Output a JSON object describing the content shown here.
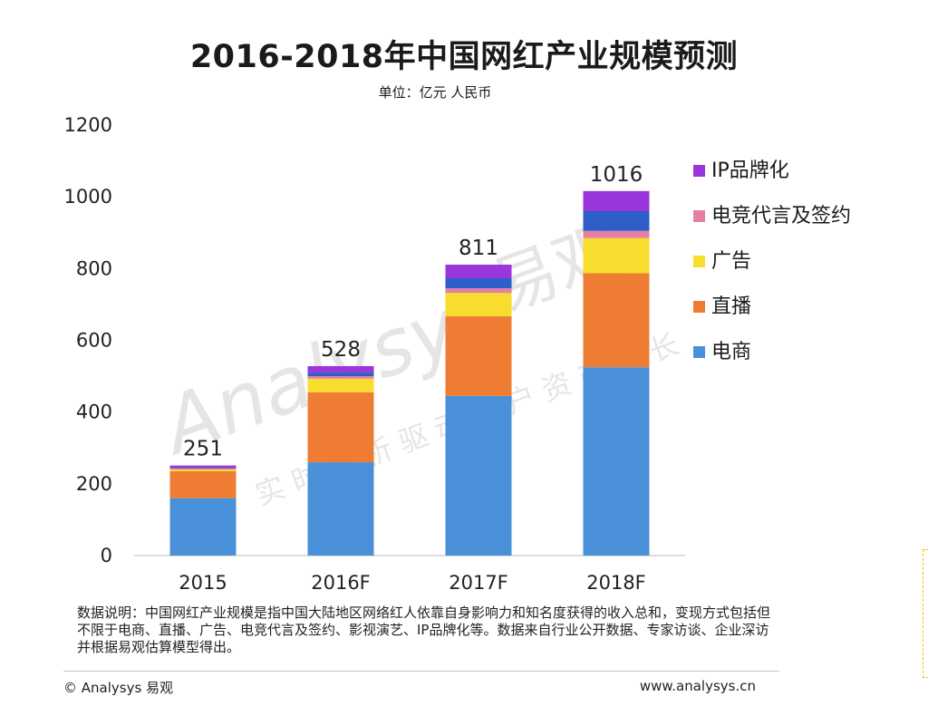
{
  "header": {
    "title": "2016-2018年中国网红产业规模预测",
    "subtitle": "单位：亿元 人民币"
  },
  "colors": {
    "ecommerce": "#4a90d9",
    "livestream": "#ee7d33",
    "advertising": "#f8dc2e",
    "esports": "#e77fa4",
    "blue_segment": "#2e5fc9",
    "ip_brand": "#9b36dc"
  },
  "chart_data": {
    "type": "bar",
    "stacked": true,
    "categories": [
      "2015",
      "2016F",
      "2017F",
      "2018F"
    ],
    "totals": [
      "251",
      "528",
      "811",
      "1016"
    ],
    "series": [
      {
        "key": "ecommerce",
        "name": "电商",
        "values": [
          160,
          260,
          445,
          525
        ]
      },
      {
        "key": "livestream",
        "name": "直播",
        "values": [
          75,
          195,
          222,
          262
        ]
      },
      {
        "key": "advertising",
        "name": "广告",
        "values": [
          5,
          38,
          65,
          98
        ]
      },
      {
        "key": "esports",
        "name": "电竞代言及签约",
        "values": [
          3,
          7,
          13,
          20
        ]
      },
      {
        "key": "blue_segment",
        "name": "",
        "values": [
          2,
          10,
          28,
          55
        ]
      },
      {
        "key": "ip_brand",
        "name": "IP品牌化",
        "values": [
          6,
          18,
          38,
          56
        ]
      }
    ],
    "legend": [
      "IP品牌化",
      "电竞代言及签约",
      "广告",
      "直播",
      "电商"
    ],
    "legend_keys": [
      "ip_brand",
      "esports",
      "advertising",
      "livestream",
      "ecommerce"
    ],
    "ylim": [
      0,
      1200
    ],
    "yticks": [
      0,
      200,
      400,
      600,
      800,
      1000,
      1200
    ],
    "grid": false,
    "legend_position": "right"
  },
  "watermark": {
    "logo": "Analysys",
    "brand": "易观",
    "slogan": "实时分析驱动用户资产成长"
  },
  "footer": {
    "note": "数据说明：中国网红产业规模是指中国大陆地区网络红人依靠自身影响力和知名度获得的收入总和，变现方式包括但不限于电商、直播、广告、电竞代言及签约、影视演艺、IP品牌化等。数据来自行业公开数据、专家访谈、企业深访并根据易观估算模型得出。",
    "copyright": "© Analysys 易观",
    "website": "www.analysys.cn"
  }
}
